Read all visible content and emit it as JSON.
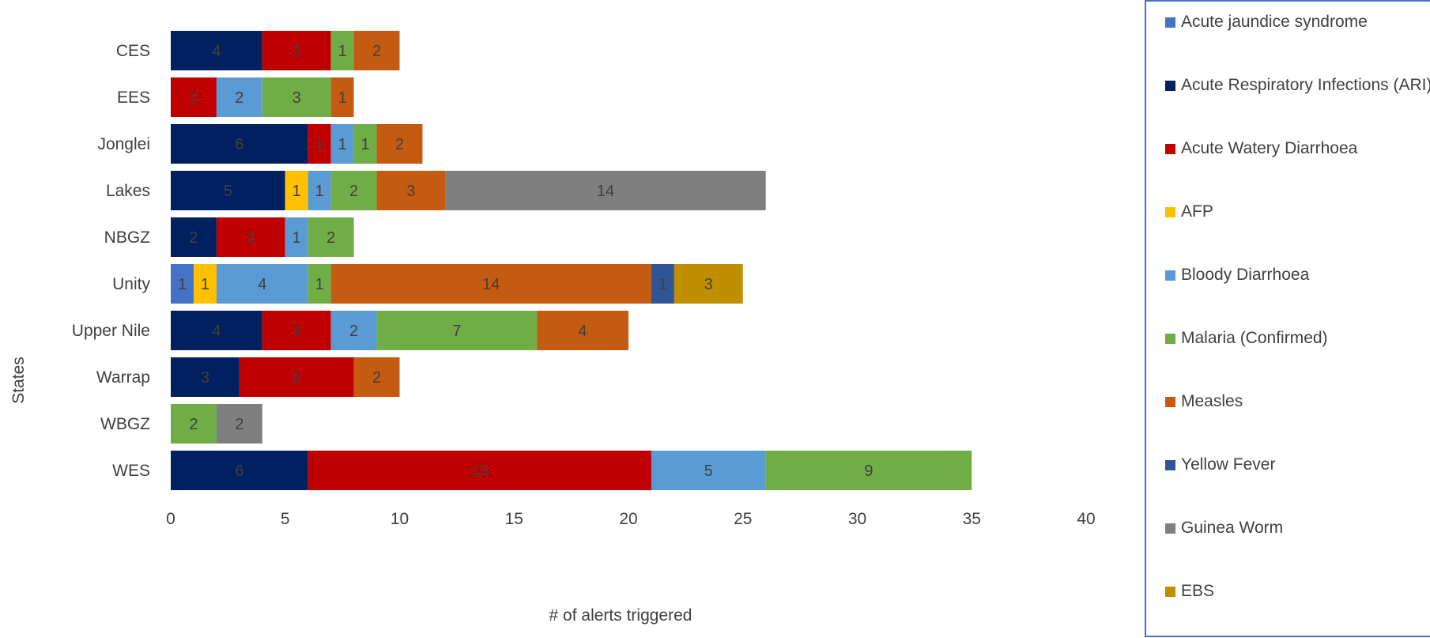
{
  "chart_data": {
    "type": "bar",
    "orientation": "horizontal",
    "stacked": true,
    "categories": [
      "CES",
      "EES",
      "Jonglei",
      "Lakes",
      "NBGZ",
      "Unity",
      "Upper Nile",
      "Warrap",
      "WBGZ",
      "WES"
    ],
    "xlabel": "# of alerts triggered",
    "ylabel": "States",
    "xlim": [
      0,
      40
    ],
    "xticks": [
      0,
      5,
      10,
      15,
      20,
      25,
      30,
      35,
      40
    ],
    "grid": false,
    "legend_position": "right",
    "series": [
      {
        "name": "Acute jaundice syndrome",
        "color": "#4472c4",
        "label_color": "#404040",
        "values": [
          0,
          0,
          0,
          0,
          0,
          1,
          0,
          0,
          0,
          0
        ]
      },
      {
        "name": "Acute Respiratory Infections (ARI)",
        "color": "#002060",
        "label_color": "#404040",
        "values": [
          4,
          0,
          6,
          5,
          2,
          0,
          4,
          3,
          0,
          6
        ]
      },
      {
        "name": "Acute Watery Diarrhoea",
        "color": "#c00000",
        "label_color": "#404040",
        "values": [
          3,
          2,
          1,
          0,
          3,
          0,
          3,
          5,
          0,
          15
        ]
      },
      {
        "name": "AFP",
        "color": "#ffc000",
        "label_color": "#404040",
        "values": [
          0,
          0,
          0,
          1,
          0,
          1,
          0,
          0,
          0,
          0
        ]
      },
      {
        "name": "Bloody Diarrhoea",
        "color": "#5b9bd5",
        "label_color": "#404040",
        "values": [
          0,
          2,
          1,
          1,
          1,
          4,
          2,
          0,
          0,
          5
        ]
      },
      {
        "name": "Malaria (Confirmed)",
        "color": "#70ad47",
        "label_color": "#404040",
        "values": [
          1,
          3,
          1,
          2,
          2,
          1,
          7,
          0,
          2,
          9
        ]
      },
      {
        "name": "Measles",
        "color": "#c55a11",
        "label_color": "#404040",
        "values": [
          2,
          1,
          2,
          3,
          0,
          14,
          4,
          2,
          0,
          0
        ]
      },
      {
        "name": "Yellow Fever",
        "color": "#2f5597",
        "label_color": "#404040",
        "values": [
          0,
          0,
          0,
          0,
          0,
          1,
          0,
          0,
          0,
          0
        ]
      },
      {
        "name": "Guinea Worm",
        "color": "#7f7f7f",
        "label_color": "#404040",
        "values": [
          0,
          0,
          0,
          14,
          0,
          0,
          0,
          0,
          2,
          0
        ]
      },
      {
        "name": "EBS",
        "color": "#bf8f00",
        "label_color": "#404040",
        "values": [
          0,
          0,
          0,
          0,
          0,
          3,
          0,
          0,
          0,
          0
        ]
      }
    ]
  }
}
